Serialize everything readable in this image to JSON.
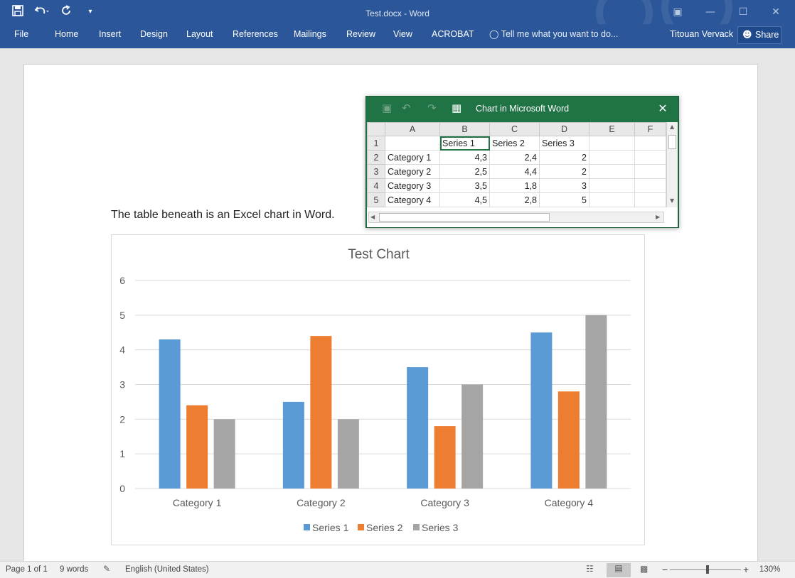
{
  "titlebar": {
    "doc_title": "Test.docx - Word",
    "qat": {
      "save_icon": "floppy-disk-icon",
      "undo_icon": "undo-arrow-icon",
      "redo_icon": "repeat-icon",
      "customize_icon": "chevron-down-icon"
    },
    "accent": "#2b579a"
  },
  "ribbon": {
    "tabs": [
      "File",
      "Home",
      "Insert",
      "Design",
      "Layout",
      "References",
      "Mailings",
      "Review",
      "View",
      "ACROBAT"
    ],
    "tell_me": "Tell me what you want to do...",
    "user": "Titouan Vervack",
    "share": "Share"
  },
  "document": {
    "paragraph": "The table beneath is an Excel chart in Word."
  },
  "excel_window": {
    "title": "Chart in Microsoft Word",
    "accent": "#217346",
    "columns": [
      "A",
      "B",
      "C",
      "D",
      "E",
      "F"
    ],
    "rows": [
      [
        "1",
        "",
        "Series 1",
        "Series 2",
        "Series 3",
        "",
        ""
      ],
      [
        "2",
        "Category 1",
        "4,3",
        "2,4",
        "2",
        "",
        ""
      ],
      [
        "3",
        "Category 2",
        "2,5",
        "4,4",
        "2",
        "",
        ""
      ],
      [
        "4",
        "Category 3",
        "3,5",
        "1,8",
        "3",
        "",
        ""
      ],
      [
        "5",
        "Category 4",
        "4,5",
        "2,8",
        "5",
        "",
        ""
      ]
    ]
  },
  "chart_data": {
    "type": "bar",
    "title": "Test Chart",
    "categories": [
      "Category 1",
      "Category 2",
      "Category 3",
      "Category 4"
    ],
    "series": [
      {
        "name": "Series 1",
        "values": [
          4.3,
          2.5,
          3.5,
          4.5
        ],
        "color": "#5b9bd5"
      },
      {
        "name": "Series 2",
        "values": [
          2.4,
          4.4,
          1.8,
          2.8
        ],
        "color": "#ed7d31"
      },
      {
        "name": "Series 3",
        "values": [
          2,
          2,
          3,
          5
        ],
        "color": "#a5a5a5"
      }
    ],
    "ylim": [
      0,
      6
    ],
    "yticks": [
      "0",
      "1",
      "2",
      "3",
      "4",
      "5",
      "6"
    ],
    "grid": true,
    "legend": "bottom"
  },
  "statusbar": {
    "page": "Page 1 of 1",
    "words": "9 words",
    "language": "English (United States)",
    "zoom": "130%",
    "zoom_minus": "−",
    "zoom_plus": "+"
  }
}
